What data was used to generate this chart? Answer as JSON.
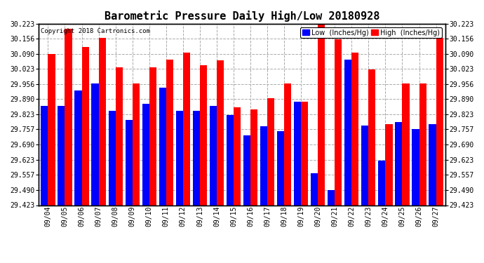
{
  "title": "Barometric Pressure Daily High/Low 20180928",
  "copyright": "Copyright 2018 Cartronics.com",
  "dates": [
    "09/04",
    "09/05",
    "09/06",
    "09/07",
    "09/08",
    "09/09",
    "09/10",
    "09/11",
    "09/12",
    "09/13",
    "09/14",
    "09/15",
    "09/16",
    "09/17",
    "09/18",
    "09/19",
    "09/20",
    "09/21",
    "09/22",
    "09/23",
    "09/24",
    "09/25",
    "09/26",
    "09/27"
  ],
  "low_values": [
    29.86,
    29.862,
    29.93,
    29.96,
    29.84,
    29.8,
    29.87,
    29.94,
    29.84,
    29.84,
    29.86,
    29.82,
    29.73,
    29.77,
    29.75,
    29.88,
    29.565,
    29.49,
    30.065,
    29.775,
    29.62,
    29.79,
    29.76,
    29.78
  ],
  "high_values": [
    30.09,
    30.2,
    30.12,
    30.16,
    30.03,
    29.96,
    30.03,
    30.065,
    30.095,
    30.04,
    30.06,
    29.855,
    29.845,
    29.895,
    29.96,
    29.88,
    30.23,
    30.155,
    30.095,
    30.02,
    29.78,
    29.96,
    29.96,
    30.16
  ],
  "ylim_min": 29.423,
  "ylim_max": 30.223,
  "yticks": [
    29.423,
    29.49,
    29.557,
    29.623,
    29.69,
    29.757,
    29.823,
    29.89,
    29.956,
    30.023,
    30.09,
    30.156,
    30.223
  ],
  "low_color": "#0000ff",
  "high_color": "#ff0000",
  "background_color": "#ffffff",
  "grid_color": "#aaaaaa",
  "title_fontsize": 11,
  "tick_fontsize": 7,
  "copyright_fontsize": 6.5,
  "legend_fontsize": 7,
  "legend_low_label": "Low  (Inches/Hg)",
  "legend_high_label": "High  (Inches/Hg)",
  "bar_width": 0.42
}
